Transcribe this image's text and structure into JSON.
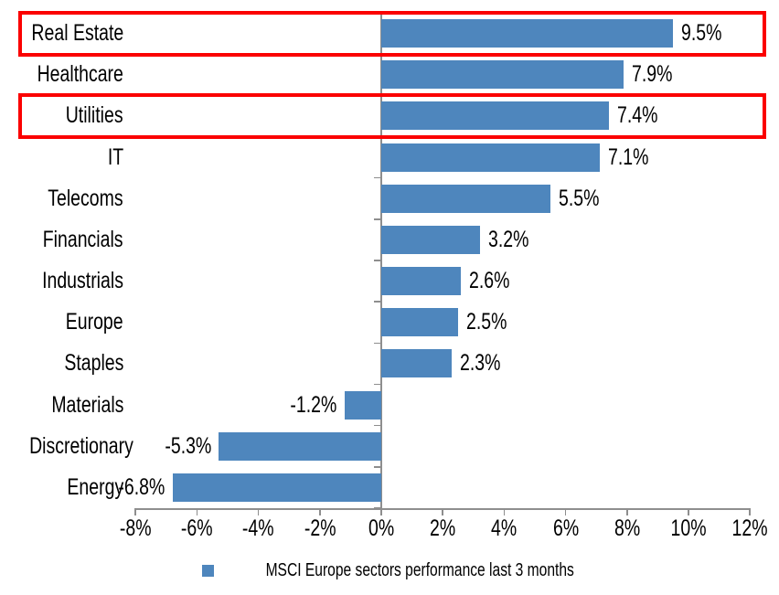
{
  "chart_data": {
    "type": "bar",
    "orientation": "horizontal",
    "title": "",
    "categories": [
      "Real Estate",
      "Healthcare",
      "Utilities",
      "IT",
      "Telecoms",
      "Financials",
      "Industrials",
      "Europe",
      "Staples",
      "Materials",
      "Discretionary",
      "Energy"
    ],
    "values": [
      9.5,
      7.9,
      7.4,
      7.1,
      5.5,
      3.2,
      2.6,
      2.5,
      2.3,
      -1.2,
      -5.3,
      -6.8
    ],
    "data_labels": [
      "9.5%",
      "7.9%",
      "7.4%",
      "7.1%",
      "5.5%",
      "3.2%",
      "2.6%",
      "2.5%",
      "2.3%",
      "-1.2%",
      "-5.3%",
      "-6.8%"
    ],
    "highlighted_categories": [
      "Real Estate",
      "Utilities"
    ],
    "x_ticks": [
      "-8%",
      "-6%",
      "-4%",
      "-2%",
      "0%",
      "2%",
      "4%",
      "6%",
      "8%",
      "10%",
      "12%"
    ],
    "x_tick_values": [
      -8,
      -6,
      -4,
      -2,
      0,
      2,
      4,
      6,
      8,
      10,
      12
    ],
    "xlim": [
      -8,
      12
    ],
    "grid": false,
    "legend": "MSCI Europe sectors performance last 3 months",
    "legend_position": "bottom",
    "bar_color": "#4E86BD",
    "highlight_color": "#FB0000",
    "axis_color": "#8E8E8E",
    "text_color": "#000000"
  }
}
